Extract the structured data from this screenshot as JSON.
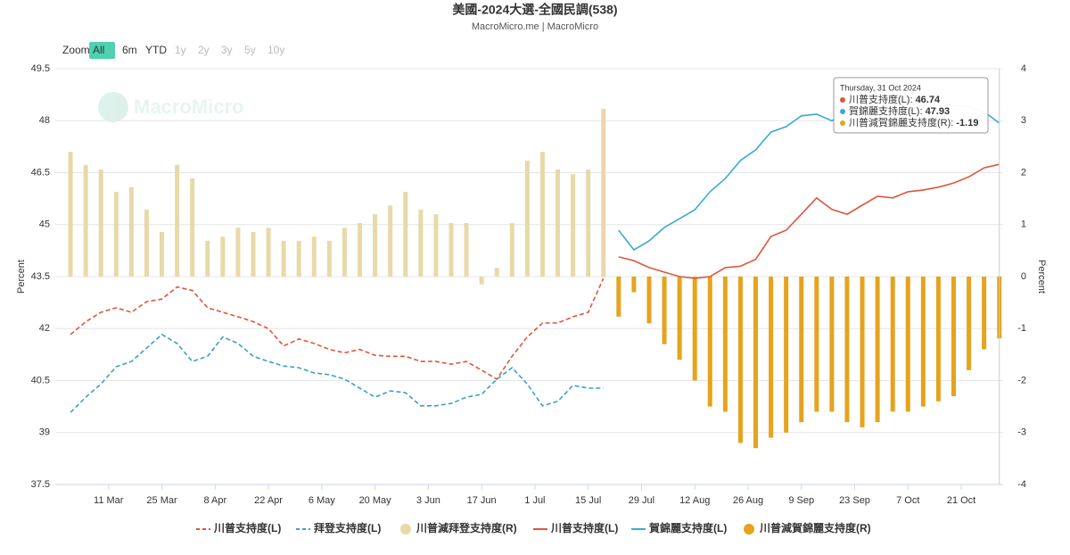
{
  "chart_data": {
    "type": "combo",
    "title": "美國-2024大選-全國民調(538)",
    "subtitle": "MacroMicro.me | MacroMicro",
    "watermark": "MacroMicro",
    "zoom": [
      "Zoom",
      "All",
      "6m",
      "YTD",
      "1y",
      "2y",
      "3y",
      "5y",
      "10y"
    ],
    "ylabel": "Percent",
    "y2label": "Percent",
    "grid": true,
    "x": [
      "2024-03-01",
      "2024-03-05",
      "2024-03-09",
      "2024-03-13",
      "2024-03-17",
      "2024-03-21",
      "2024-03-25",
      "2024-03-29",
      "2024-04-02",
      "2024-04-06",
      "2024-04-10",
      "2024-04-14",
      "2024-04-18",
      "2024-04-22",
      "2024-04-26",
      "2024-04-30",
      "2024-05-04",
      "2024-05-08",
      "2024-05-12",
      "2024-05-16",
      "2024-05-20",
      "2024-05-24",
      "2024-05-28",
      "2024-06-01",
      "2024-06-05",
      "2024-06-09",
      "2024-06-13",
      "2024-06-17",
      "2024-06-21",
      "2024-06-25",
      "2024-06-29",
      "2024-07-03",
      "2024-07-07",
      "2024-07-11",
      "2024-07-15",
      "2024-07-19",
      "2024-07-23",
      "2024-07-27",
      "2024-07-31",
      "2024-08-04",
      "2024-08-08",
      "2024-08-12",
      "2024-08-16",
      "2024-08-20",
      "2024-08-24",
      "2024-08-28",
      "2024-09-01",
      "2024-09-05",
      "2024-09-09",
      "2024-09-13",
      "2024-09-17",
      "2024-09-21",
      "2024-09-25",
      "2024-09-29",
      "2024-10-03",
      "2024-10-07",
      "2024-10-11",
      "2024-10-15",
      "2024-10-19",
      "2024-10-23",
      "2024-10-27",
      "2024-10-31"
    ],
    "xlim": [
      "2024-02-26",
      "2024-11-01"
    ],
    "xticks": [
      {
        "value": "2024-03-11",
        "label": "11 Mar"
      },
      {
        "value": "2024-03-25",
        "label": "25 Mar"
      },
      {
        "value": "2024-04-08",
        "label": "8 Apr"
      },
      {
        "value": "2024-04-22",
        "label": "22 Apr"
      },
      {
        "value": "2024-05-06",
        "label": "6 May"
      },
      {
        "value": "2024-05-20",
        "label": "20 May"
      },
      {
        "value": "2024-06-03",
        "label": "3 Jun"
      },
      {
        "value": "2024-06-17",
        "label": "17 Jun"
      },
      {
        "value": "2024-07-01",
        "label": "1 Jul"
      },
      {
        "value": "2024-07-15",
        "label": "15 Jul"
      },
      {
        "value": "2024-07-29",
        "label": "29 Jul"
      },
      {
        "value": "2024-08-12",
        "label": "12 Aug"
      },
      {
        "value": "2024-08-26",
        "label": "26 Aug"
      },
      {
        "value": "2024-09-09",
        "label": "9 Sep"
      },
      {
        "value": "2024-09-23",
        "label": "23 Sep"
      },
      {
        "value": "2024-10-07",
        "label": "7 Oct"
      },
      {
        "value": "2024-10-21",
        "label": "21 Oct"
      }
    ],
    "ylim": [
      37.5,
      49.5
    ],
    "yticks": [
      37.5,
      39,
      40.5,
      42,
      43.5,
      45,
      46.5,
      48,
      49.5
    ],
    "y2lim": [
      -4,
      4
    ],
    "y2ticks": [
      -4,
      -3,
      -2,
      -1,
      0,
      1,
      2,
      3,
      4
    ],
    "series": [
      {
        "name": "川普支持度(L)",
        "kind": "line",
        "dashed": true,
        "color": "#e0553b",
        "values": [
          41.83,
          42.2,
          42.47,
          42.6,
          42.47,
          42.78,
          42.85,
          43.2,
          43.1,
          42.6,
          42.47,
          42.34,
          42.2,
          42.0,
          41.5,
          41.7,
          41.57,
          41.4,
          41.3,
          41.4,
          41.23,
          41.2,
          41.2,
          41.05,
          41.05,
          40.97,
          41.05,
          40.8,
          40.54,
          41.2,
          41.76,
          42.16,
          42.16,
          42.34,
          42.47,
          43.45,
          null,
          null,
          null,
          null,
          null,
          null,
          null,
          null,
          null,
          null,
          null,
          null,
          null,
          null,
          null,
          null,
          null,
          null,
          null,
          null,
          null,
          null,
          null,
          null,
          null,
          null
        ]
      },
      {
        "name": "拜登支持度(L)",
        "kind": "line",
        "dashed": true,
        "color": "#3a9fd1",
        "values": [
          39.58,
          40.02,
          40.4,
          40.9,
          41.05,
          41.44,
          41.83,
          41.57,
          41.05,
          41.2,
          41.76,
          41.57,
          41.2,
          41.05,
          40.92,
          40.87,
          40.72,
          40.67,
          40.54,
          40.28,
          40.02,
          40.2,
          40.15,
          39.77,
          39.77,
          39.84,
          40.02,
          40.1,
          40.54,
          40.87,
          40.4,
          39.77,
          39.9,
          40.36,
          40.28,
          40.28,
          null,
          null,
          null,
          null,
          null,
          null,
          null,
          null,
          null,
          null,
          null,
          null,
          null,
          null,
          null,
          null,
          null,
          null,
          null,
          null,
          null,
          null,
          null,
          null,
          null,
          null
        ]
      },
      {
        "name": "川普減拜登支持度(R)",
        "kind": "bar",
        "axis": "y2",
        "color": "#e8d9a8",
        "values": [
          2.4,
          2.15,
          2.06,
          1.63,
          1.72,
          1.29,
          0.86,
          2.15,
          1.89,
          0.69,
          0.77,
          0.94,
          0.86,
          0.94,
          0.69,
          0.69,
          0.77,
          0.69,
          0.94,
          1.03,
          1.2,
          1.37,
          1.63,
          1.29,
          1.2,
          1.03,
          1.03,
          -0.15,
          0.17,
          1.03,
          2.23,
          2.4,
          2.06,
          1.97,
          2.06,
          3.23,
          null,
          null,
          null,
          null,
          null,
          null,
          null,
          null,
          null,
          null,
          null,
          null,
          null,
          null,
          null,
          null,
          null,
          null,
          null,
          null,
          null,
          null,
          null,
          null,
          null,
          null
        ]
      },
      {
        "name": "川普支持度(L)",
        "kind": "line",
        "dashed": false,
        "color": "#e0553b",
        "values": [
          null,
          null,
          null,
          null,
          null,
          null,
          null,
          null,
          null,
          null,
          null,
          null,
          null,
          null,
          null,
          null,
          null,
          null,
          null,
          null,
          null,
          null,
          null,
          null,
          null,
          null,
          null,
          null,
          null,
          null,
          null,
          null,
          null,
          null,
          null,
          null,
          44.07,
          43.96,
          43.76,
          43.63,
          43.5,
          43.45,
          43.5,
          43.76,
          43.8,
          44.0,
          44.66,
          44.84,
          45.3,
          45.77,
          45.44,
          45.3,
          45.56,
          45.82,
          45.77,
          45.95,
          46.0,
          46.08,
          46.2,
          46.38,
          46.64,
          46.74
        ]
      },
      {
        "name": "賀錦麗支持度(L)",
        "kind": "line",
        "dashed": false,
        "color": "#3aa8d8",
        "values": [
          null,
          null,
          null,
          null,
          null,
          null,
          null,
          null,
          null,
          null,
          null,
          null,
          null,
          null,
          null,
          null,
          null,
          null,
          null,
          null,
          null,
          null,
          null,
          null,
          null,
          null,
          null,
          null,
          null,
          null,
          null,
          null,
          null,
          null,
          null,
          null,
          44.84,
          44.27,
          44.53,
          44.92,
          45.17,
          45.43,
          45.95,
          46.33,
          46.85,
          47.16,
          47.67,
          47.83,
          48.14,
          48.19,
          48.0,
          48.26,
          48.44,
          48.52,
          48.6,
          48.52,
          48.52,
          48.52,
          48.44,
          48.39,
          48.26,
          47.93
        ]
      },
      {
        "name": "川普減賀錦麗支持度(R)",
        "kind": "bar",
        "axis": "y2",
        "color": "#e6a31c",
        "values": [
          null,
          null,
          null,
          null,
          null,
          null,
          null,
          null,
          null,
          null,
          null,
          null,
          null,
          null,
          null,
          null,
          null,
          null,
          null,
          null,
          null,
          null,
          null,
          null,
          null,
          null,
          null,
          null,
          null,
          null,
          null,
          null,
          null,
          null,
          null,
          null,
          -0.77,
          -0.3,
          -0.9,
          -1.3,
          -1.6,
          -2.0,
          -2.5,
          -2.6,
          -3.2,
          -3.3,
          -3.1,
          -3.0,
          -2.8,
          -2.6,
          -2.6,
          -2.8,
          -2.9,
          -2.8,
          -2.6,
          -2.6,
          -2.5,
          -2.4,
          -2.3,
          -1.8,
          -1.4,
          -1.19
        ]
      }
    ],
    "tooltip": {
      "title": "Thursday, 31 Oct 2024",
      "index": 61,
      "items": [
        {
          "label": "川普支持度(L): ",
          "series": 3
        },
        {
          "label": "賀錦麗支持度(L): ",
          "series": 4
        },
        {
          "label": "川普減賀錦麗支持度(R): ",
          "series": 5
        }
      ]
    }
  }
}
